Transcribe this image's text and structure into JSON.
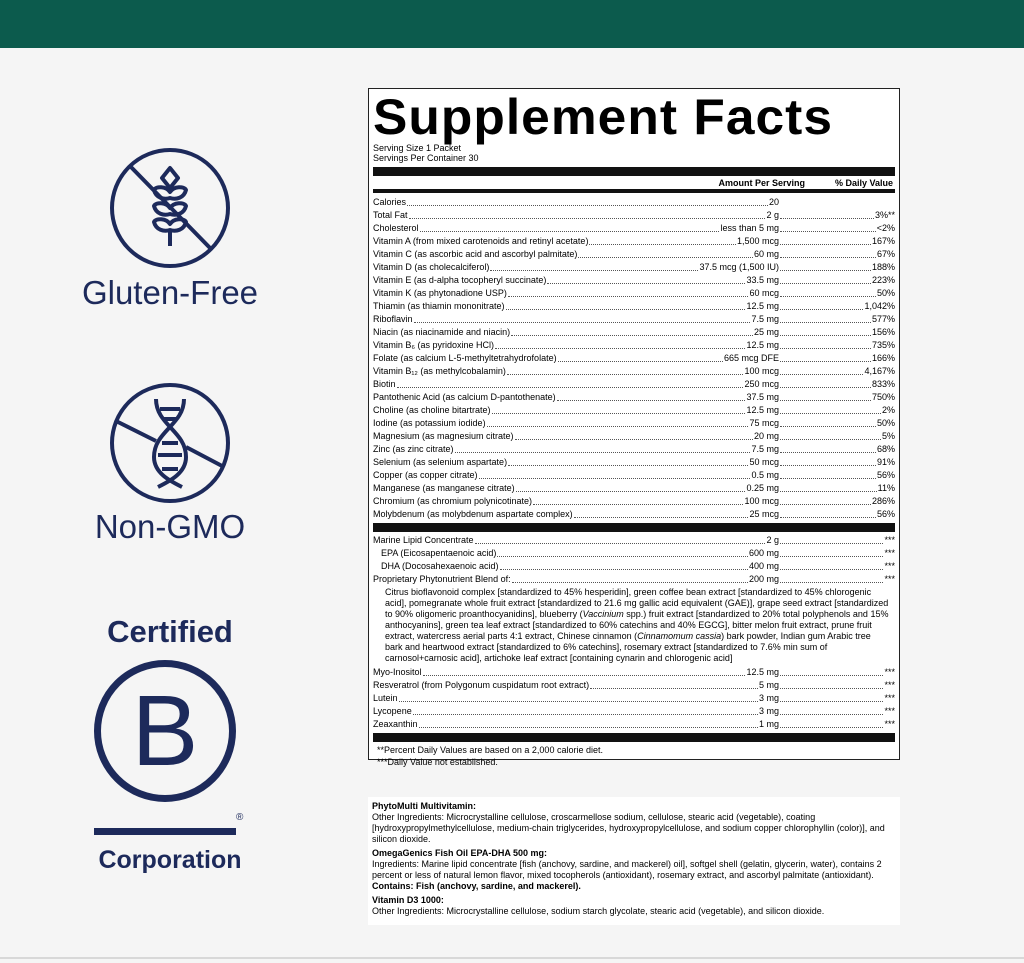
{
  "badges": {
    "gluten_free": "Gluten-Free",
    "non_gmo": "Non-GMO",
    "b_corp_top": "Certified",
    "b_corp_letter": "B",
    "b_corp_bottom": "Corporation",
    "registered": "®"
  },
  "colors": {
    "top_bar": "#0c5b4d",
    "badge": "#1d2a5b"
  },
  "panel": {
    "title": "Supplement Facts",
    "serving_size": "Serving Size 1 Packet",
    "servings_per_container": "Servings Per Container 30",
    "col_amount": "Amount Per Serving",
    "col_dv": "% Daily Value",
    "rows": [
      {
        "name": "Calories",
        "amount": "20",
        "dv": ""
      },
      {
        "name": "Total Fat",
        "amount": "2 g",
        "dv": "3%**"
      },
      {
        "name": "Cholesterol",
        "amount": "less than 5 mg",
        "dv": "<2%"
      },
      {
        "name": "Vitamin A (from mixed carotenoids and retinyl acetate)",
        "amount": "1,500 mcg",
        "dv": "167%"
      },
      {
        "name": "Vitamin C (as ascorbic acid and ascorbyl palmitate)",
        "amount": "60 mg",
        "dv": "67%"
      },
      {
        "name": "Vitamin D (as cholecalciferol)",
        "amount": "37.5 mcg (1,500 IU)",
        "dv": "188%"
      },
      {
        "name": "Vitamin E (as d-alpha tocopheryl succinate)",
        "amount": "33.5 mg",
        "dv": "223%"
      },
      {
        "name": "Vitamin K (as phytonadione USP)",
        "amount": "60 mcg",
        "dv": "50%"
      },
      {
        "name": "Thiamin (as thiamin mononitrate)",
        "amount": "12.5 mg",
        "dv": "1,042%"
      },
      {
        "name": "Riboflavin",
        "amount": "7.5 mg",
        "dv": "577%"
      },
      {
        "name": "Niacin (as niacinamide and niacin)",
        "amount": "25 mg",
        "dv": "156%"
      },
      {
        "name": "Vitamin B₆ (as pyridoxine HCl)",
        "amount": "12.5 mg",
        "dv": "735%"
      },
      {
        "name": "Folate (as calcium L-5-methyltetrahydrofolate)",
        "amount": "665 mcg DFE",
        "dv": "166%"
      },
      {
        "name": "Vitamin B₁₂ (as methylcobalamin)",
        "amount": "100 mcg",
        "dv": "4,167%"
      },
      {
        "name": "Biotin",
        "amount": "250 mcg",
        "dv": "833%"
      },
      {
        "name": "Pantothenic Acid (as calcium D-pantothenate)",
        "amount": "37.5 mg",
        "dv": "750%"
      },
      {
        "name": "Choline (as choline bitartrate)",
        "amount": "12.5 mg",
        "dv": "2%"
      },
      {
        "name": "Iodine (as potassium iodide)",
        "amount": "75 mcg",
        "dv": "50%"
      },
      {
        "name": "Magnesium (as magnesium citrate)",
        "amount": "20 mg",
        "dv": "5%"
      },
      {
        "name": "Zinc (as zinc citrate)",
        "amount": "7.5 mg",
        "dv": "68%"
      },
      {
        "name": "Selenium (as selenium aspartate)",
        "amount": "50 mcg",
        "dv": "91%"
      },
      {
        "name": "Copper (as copper citrate)",
        "amount": "0.5 mg",
        "dv": "56%"
      },
      {
        "name": "Manganese (as manganese citrate)",
        "amount": "0.25 mg",
        "dv": "11%"
      },
      {
        "name": "Chromium (as chromium polynicotinate)",
        "amount": "100 mcg",
        "dv": "286%"
      },
      {
        "name": "Molybdenum (as molybdenum aspartate complex)",
        "amount": "25 mcg",
        "dv": "56%"
      }
    ],
    "rows2": [
      {
        "name": "Marine Lipid Concentrate",
        "amount": "2 g",
        "dv": "***"
      },
      {
        "name": "EPA (Eicosapentaenoic acid)",
        "amount": "600 mg",
        "dv": "***",
        "indent": true
      },
      {
        "name": "DHA (Docosahexaenoic acid)",
        "amount": "400 mg",
        "dv": "***",
        "indent": true
      },
      {
        "name": "Proprietary Phytonutrient Blend of:",
        "amount": "200 mg",
        "dv": "***"
      }
    ],
    "blend": [
      {
        "text": "Citrus bioflavonoid complex [standardized to 45% hesperidin], green coffee bean extract [standardized to 45% chlorogenic acid], pomegranate whole fruit extract [standardized to 21.6 mg gallic acid equivalent (GAE)], grape seed extract [standardized to 90% oligomeric proanthocyanidins], blueberry ("
      },
      {
        "text": "Vaccinium",
        "italic": true
      },
      {
        "text": " spp.) fruit extract [standardized to 20% total polyphenols and 15% anthocyanins], green tea leaf extract [standardized to 60% catechins and 40% EGCG], bitter melon fruit extract, prune fruit extract, watercress aerial parts 4:1 extract, Chinese cinnamon ("
      },
      {
        "text": "Cinnamomum cassia",
        "italic": true
      },
      {
        "text": ") bark powder, Indian gum Arabic tree bark and heartwood extract [standardized to 6% catechins], rosemary extract [standardized to 7.6% min sum of carnosol+carnosic acid], artichoke leaf extract [containing cynarin and chlorogenic acid]"
      }
    ],
    "rows3": [
      {
        "name": "Myo-Inositol",
        "amount": "12.5 mg",
        "dv": "***"
      },
      {
        "name": "Resveratrol (from Polygonum cuspidatum root extract)",
        "amount": "5 mg",
        "dv": "***"
      },
      {
        "name": "Lutein",
        "amount": "3 mg",
        "dv": "***"
      },
      {
        "name": "Lycopene",
        "amount": "3 mg",
        "dv": "***"
      },
      {
        "name": "Zeaxanthin",
        "amount": "1 mg",
        "dv": "***"
      }
    ],
    "footnote1": "**Percent Daily Values are based on a 2,000 calorie diet.",
    "footnote2": "***Daily Value not established."
  },
  "ingredients": {
    "h1": "PhytoMulti Multivitamin:",
    "p1": "Other Ingredients: Microcrystalline cellulose, croscarmellose sodium, cellulose, stearic acid (vegetable), coating [hydroxypropylmethylcellulose, medium-chain triglycerides, hydroxypropylcellulose, and sodium copper chlorophyllin (color)], and silicon dioxide.",
    "h2": "OmegaGenics Fish Oil EPA-DHA 500 mg:",
    "p2": "Ingredients: Marine lipid concentrate [fish (anchovy, sardine, and mackerel) oil], softgel shell (gelatin, glycerin, water), contains 2 percent or less of natural lemon flavor, mixed tocopherols (antioxidant), rosemary extract, and ascorbyl palmitate (antioxidant).",
    "contains": "Contains: Fish (anchovy, sardine, and mackerel).",
    "h3": "Vitamin D3 1000:",
    "p3": "Other Ingredients: Microcrystalline cellulose, sodium starch glycolate, stearic acid (vegetable), and silicon dioxide."
  }
}
